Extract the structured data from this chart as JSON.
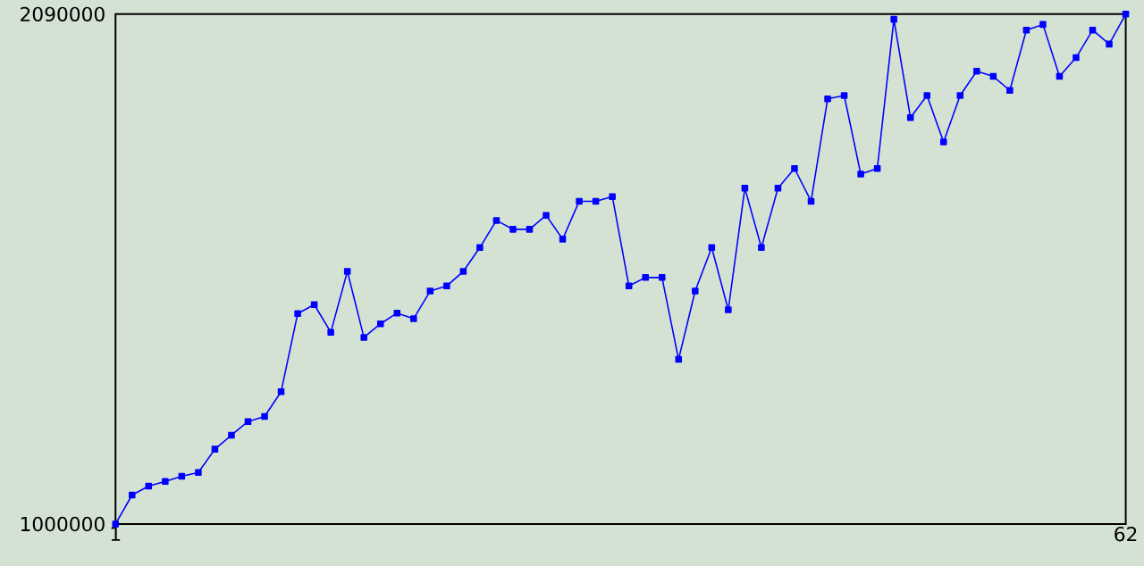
{
  "chart_data": {
    "type": "line",
    "x": [
      1,
      2,
      3,
      4,
      5,
      6,
      7,
      8,
      9,
      10,
      11,
      12,
      13,
      14,
      15,
      16,
      17,
      18,
      19,
      20,
      21,
      22,
      23,
      24,
      25,
      26,
      27,
      28,
      29,
      30,
      31,
      32,
      33,
      34,
      35,
      36,
      37,
      38,
      39,
      40,
      41,
      42,
      43,
      44,
      45,
      46,
      47,
      48,
      49,
      50,
      51,
      52,
      53,
      54,
      55,
      56,
      57,
      58,
      59,
      60,
      61,
      62
    ],
    "series": [
      {
        "color": "#0000ff",
        "values": [
          1000000,
          1062000,
          1081000,
          1091000,
          1102000,
          1110000,
          1160000,
          1190000,
          1219000,
          1230000,
          1283000,
          1450000,
          1469000,
          1410000,
          1540000,
          1399000,
          1428000,
          1451000,
          1439000,
          1498000,
          1509000,
          1540000,
          1591000,
          1649000,
          1630000,
          1630000,
          1660000,
          1609000,
          1690000,
          1690000,
          1700000,
          1509000,
          1527000,
          1527000,
          1352000,
          1498000,
          1591000,
          1458000,
          1718000,
          1591000,
          1718000,
          1760000,
          1690000,
          1909000,
          1916000,
          1748000,
          1760000,
          2079000,
          1869000,
          1916000,
          1817000,
          1916000,
          1968000,
          1957000,
          1927000,
          2056000,
          2068000,
          1957000,
          1997000,
          2056000,
          2026000,
          2090000
        ]
      }
    ],
    "xlim": [
      1,
      62
    ],
    "xticks": [
      1,
      62
    ],
    "ylim": [
      1000000,
      2090000
    ],
    "yticks": [
      1000000,
      2090000
    ],
    "marker": "square",
    "line_style": "solid"
  }
}
